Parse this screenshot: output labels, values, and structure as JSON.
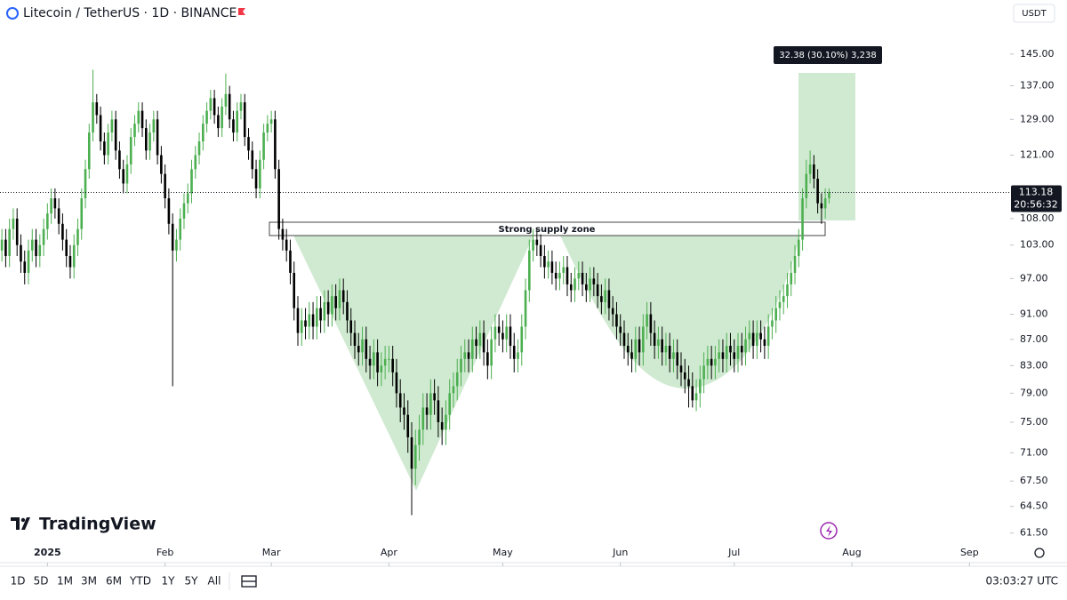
{
  "chart_data": {
    "type": "candlestick",
    "title": "Litecoin / TetherUS · 1D · BINANCE",
    "currency": "USDT",
    "log_scale": true,
    "grid": false,
    "up_color": "#4caf50",
    "down_color": "#000000",
    "open": [
      102,
      104,
      101,
      106,
      108,
      103,
      100,
      98,
      102,
      104,
      101,
      103,
      106,
      109,
      112,
      110,
      107,
      104,
      101,
      99,
      103,
      106,
      112,
      118,
      126,
      133,
      130,
      124,
      121,
      126,
      129,
      122,
      118,
      115,
      119,
      125,
      128,
      131,
      127,
      122,
      126,
      129,
      121,
      117,
      112,
      107,
      102,
      104,
      108,
      111,
      113,
      118,
      121,
      124,
      128,
      131,
      134,
      130,
      127,
      132,
      135,
      129,
      126,
      131,
      133,
      125,
      122,
      118,
      114,
      120,
      126,
      128,
      129,
      118,
      106,
      104,
      102,
      98,
      92,
      88,
      90,
      89,
      91,
      89,
      92,
      90,
      93,
      91,
      94,
      92,
      95,
      93,
      90,
      88,
      86,
      85,
      87,
      84,
      83,
      85,
      82,
      83,
      84,
      84,
      82,
      79,
      77,
      76,
      73,
      69,
      72,
      74,
      77,
      76,
      79,
      78,
      75,
      74,
      76,
      79,
      80,
      82,
      84,
      85,
      84,
      87,
      86,
      88,
      85,
      83,
      87,
      89,
      88,
      87,
      89,
      86,
      84,
      85,
      89,
      95,
      102,
      104,
      103,
      101,
      99,
      100,
      98,
      97,
      98,
      99,
      96,
      95,
      97,
      98,
      96,
      95,
      97,
      96,
      94,
      93,
      95,
      92,
      91,
      89,
      88,
      86,
      85,
      84,
      87,
      85,
      89,
      91,
      88,
      86,
      87,
      85,
      86,
      84,
      85,
      83,
      82,
      81,
      80,
      78,
      79,
      81,
      83,
      84,
      83,
      84,
      85,
      84,
      86,
      85,
      84,
      86,
      85,
      87,
      88,
      86,
      88,
      87,
      86,
      89,
      90,
      92,
      93,
      94,
      96,
      98,
      101,
      104,
      112,
      117,
      119,
      116,
      111,
      110,
      112
    ],
    "high": [
      106,
      106,
      108,
      110,
      110,
      105,
      102,
      104,
      106,
      106,
      105,
      108,
      111,
      114,
      114,
      112,
      109,
      106,
      103,
      105,
      108,
      114,
      120,
      128,
      141,
      135,
      132,
      126,
      128,
      131,
      131,
      124,
      120,
      121,
      127,
      130,
      133,
      133,
      129,
      128,
      131,
      131,
      123,
      119,
      114,
      109,
      106,
      110,
      113,
      115,
      120,
      123,
      126,
      130,
      133,
      136,
      136,
      132,
      134,
      140,
      137,
      131,
      133,
      135,
      135,
      127,
      124,
      120,
      122,
      128,
      130,
      131,
      131,
      120,
      108,
      106,
      104,
      100,
      94,
      92,
      92,
      93,
      93,
      94,
      94,
      95,
      95,
      96,
      96,
      97,
      97,
      95,
      92,
      90,
      88,
      89,
      89,
      86,
      87,
      87,
      85,
      86,
      86,
      86,
      84,
      81,
      79,
      78,
      75,
      74,
      76,
      79,
      79,
      81,
      81,
      80,
      77,
      78,
      81,
      82,
      84,
      86,
      87,
      87,
      89,
      89,
      90,
      90,
      87,
      89,
      91,
      91,
      90,
      91,
      91,
      88,
      87,
      91,
      97,
      104,
      106,
      106,
      105,
      103,
      102,
      102,
      100,
      100,
      101,
      101,
      98,
      99,
      100,
      100,
      98,
      99,
      99,
      98,
      96,
      97,
      97,
      94,
      93,
      91,
      90,
      88,
      87,
      89,
      89,
      91,
      93,
      93,
      90,
      89,
      89,
      88,
      88,
      87,
      87,
      85,
      84,
      83,
      82,
      81,
      83,
      85,
      86,
      86,
      86,
      87,
      87,
      88,
      88,
      87,
      88,
      88,
      89,
      90,
      90,
      90,
      90,
      89,
      91,
      92,
      94,
      95,
      96,
      98,
      100,
      103,
      106,
      114,
      120,
      122,
      121,
      118,
      113,
      114,
      114
    ],
    "low": [
      100,
      99,
      99,
      104,
      101,
      98,
      96,
      96,
      100,
      99,
      99,
      101,
      104,
      107,
      108,
      105,
      102,
      99,
      97,
      97,
      101,
      104,
      110,
      116,
      124,
      128,
      122,
      119,
      119,
      124,
      120,
      116,
      113,
      113,
      117,
      123,
      126,
      125,
      120,
      120,
      124,
      119,
      115,
      110,
      105,
      80,
      100,
      102,
      106,
      109,
      111,
      116,
      119,
      122,
      126,
      129,
      128,
      125,
      125,
      130,
      127,
      124,
      124,
      129,
      123,
      120,
      116,
      112,
      112,
      118,
      124,
      126,
      116,
      104,
      102,
      100,
      96,
      90,
      86,
      86,
      87,
      87,
      87,
      87,
      88,
      88,
      89,
      89,
      90,
      90,
      91,
      88,
      86,
      84,
      83,
      83,
      82,
      81,
      81,
      80,
      80,
      81,
      82,
      80,
      77,
      75,
      74,
      71,
      63.5,
      67,
      70,
      72,
      74,
      74,
      76,
      73,
      72,
      72,
      74,
      77,
      78,
      80,
      82,
      82,
      82,
      84,
      84,
      83,
      81,
      81,
      85,
      86,
      85,
      85,
      84,
      82,
      82,
      83,
      87,
      93,
      100,
      101,
      99,
      97,
      97,
      96,
      95,
      95,
      96,
      94,
      93,
      93,
      95,
      94,
      93,
      93,
      94,
      92,
      91,
      91,
      90,
      89,
      87,
      86,
      84,
      83,
      82,
      82,
      83,
      83,
      87,
      86,
      84,
      84,
      83,
      83,
      82,
      82,
      81,
      80,
      79,
      77,
      77,
      76.5,
      77,
      79,
      81,
      81,
      81,
      82,
      82,
      82,
      83,
      82,
      82,
      83,
      83,
      85,
      84,
      84,
      85,
      84,
      84,
      87,
      88,
      90,
      91,
      92,
      94,
      96,
      99,
      102,
      110,
      115,
      114,
      109,
      107,
      108,
      111
    ],
    "close": [
      104,
      101,
      106,
      108,
      103,
      100,
      98,
      102,
      104,
      101,
      103,
      106,
      109,
      112,
      110,
      107,
      104,
      101,
      99,
      103,
      106,
      112,
      118,
      126,
      133,
      130,
      124,
      121,
      126,
      129,
      122,
      118,
      115,
      119,
      125,
      128,
      131,
      127,
      122,
      126,
      129,
      121,
      117,
      112,
      107,
      102,
      104,
      108,
      111,
      113,
      118,
      121,
      124,
      128,
      131,
      134,
      130,
      127,
      132,
      135,
      129,
      126,
      131,
      133,
      125,
      122,
      118,
      114,
      120,
      126,
      128,
      129,
      118,
      106,
      104,
      102,
      98,
      92,
      88,
      90,
      89,
      91,
      89,
      92,
      90,
      93,
      91,
      94,
      92,
      95,
      93,
      90,
      88,
      86,
      85,
      87,
      84,
      83,
      85,
      82,
      83,
      84,
      84,
      82,
      79,
      77,
      76,
      73,
      69,
      72,
      74,
      77,
      76,
      79,
      78,
      75,
      74,
      76,
      79,
      80,
      82,
      84,
      85,
      84,
      87,
      86,
      88,
      85,
      83,
      87,
      89,
      88,
      87,
      89,
      86,
      84,
      85,
      89,
      95,
      102,
      104,
      103,
      101,
      99,
      100,
      98,
      97,
      98,
      99,
      96,
      95,
      97,
      98,
      96,
      95,
      97,
      96,
      94,
      93,
      95,
      92,
      91,
      89,
      88,
      86,
      85,
      84,
      87,
      85,
      89,
      91,
      88,
      86,
      87,
      85,
      86,
      84,
      85,
      83,
      82,
      81,
      80,
      78,
      79,
      81,
      83,
      84,
      83,
      84,
      85,
      84,
      86,
      85,
      84,
      86,
      85,
      87,
      88,
      86,
      88,
      87,
      86,
      89,
      90,
      92,
      93,
      94,
      96,
      98,
      101,
      104,
      112,
      117,
      119,
      116,
      111,
      110,
      112,
      113.18
    ],
    "countdown": "20:56:32",
    "xlim": [
      -0.5,
      265
    ],
    "xticks": [
      {
        "value": 12,
        "label": "2025"
      },
      {
        "value": 43,
        "label": "Feb"
      },
      {
        "value": 71,
        "label": "Mar"
      },
      {
        "value": 102,
        "label": "Apr"
      },
      {
        "value": 132,
        "label": "May"
      },
      {
        "value": 163,
        "label": "Jun"
      },
      {
        "value": 193,
        "label": "Jul"
      },
      {
        "value": 224,
        "label": "Aug"
      },
      {
        "value": 255,
        "label": "Sep"
      }
    ],
    "ylim": [
      58.6,
      152.3
    ],
    "yticks": [
      {
        "value": 145,
        "label": "145.00"
      },
      {
        "value": 137,
        "label": "137.00"
      },
      {
        "value": 129,
        "label": "129.00"
      },
      {
        "value": 121,
        "label": "121.00"
      },
      {
        "value": 108,
        "label": "108.00"
      },
      {
        "value": 103,
        "label": "103.00"
      },
      {
        "value": 97,
        "label": "97.00"
      },
      {
        "value": 91,
        "label": "91.00"
      },
      {
        "value": 87,
        "label": "87.00"
      },
      {
        "value": 83,
        "label": "83.00"
      },
      {
        "value": 79,
        "label": "79.00"
      },
      {
        "value": 75,
        "label": "75.00"
      },
      {
        "value": 71,
        "label": "71.00"
      },
      {
        "value": 67.5,
        "label": "67.50"
      },
      {
        "value": 64.5,
        "label": "64.50"
      },
      {
        "value": 61.5,
        "label": "61.50"
      }
    ],
    "annotations": {
      "supply_zone": "Strong supply zone",
      "measure": "32.38 (30.10%) 3,238"
    }
  },
  "brand": "TradingView",
  "toolbar": {
    "ranges": [
      "1D",
      "5D",
      "1M",
      "3M",
      "6M",
      "YTD",
      "1Y",
      "5Y",
      "All"
    ],
    "clock": "03:03:27 UTC"
  }
}
